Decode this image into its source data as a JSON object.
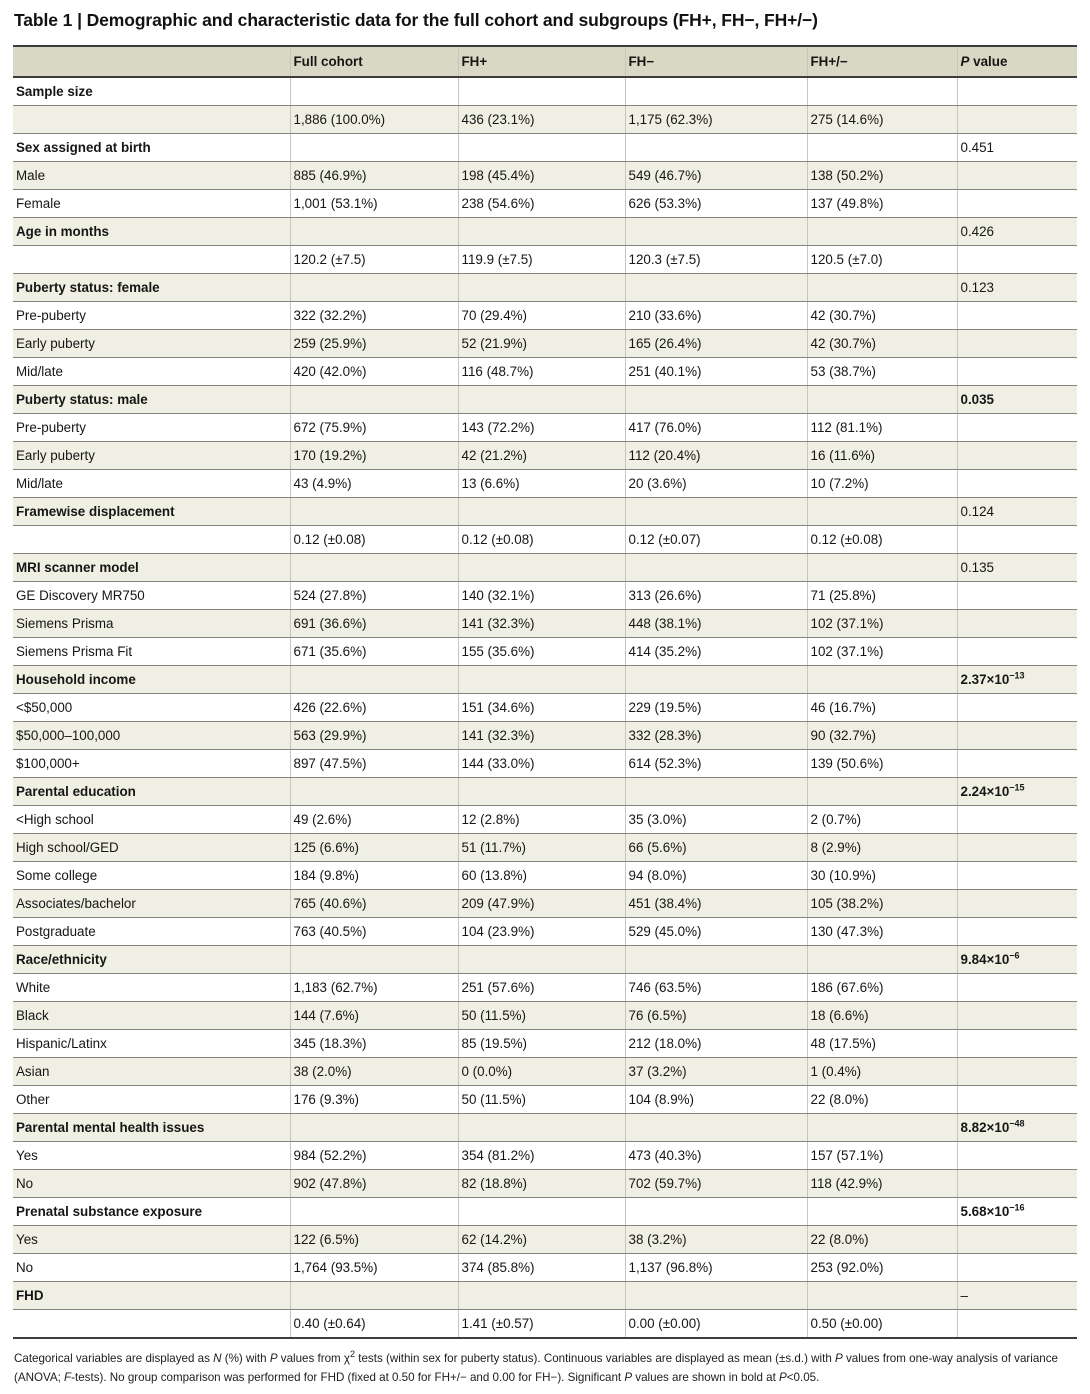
{
  "title": "Table 1 | Demographic and characteristic data for the full cohort and subgroups (FH+, FH−, FH+/−)",
  "colors": {
    "header_bg": "#d9d8c4",
    "shaded_row_bg": "#f0efe4",
    "thick_rule": "#3e3e38",
    "row_rule": "#84847c",
    "column_rule": "#c6c6bb",
    "text": "#161615"
  },
  "table": {
    "columns": [
      {
        "key": "row-label",
        "label": ""
      },
      {
        "key": "full-cohort",
        "label": "Full cohort"
      },
      {
        "key": "fh-pos",
        "label": "FH+"
      },
      {
        "key": "fh-neg",
        "label": "FH−"
      },
      {
        "key": "fh-pos-neg",
        "label": "FH+/−"
      },
      {
        "key": "p-value",
        "label": "P value",
        "italic_prefix": "P",
        "rest": " value"
      }
    ],
    "rows": [
      {
        "label": "Sample size",
        "section": true
      },
      {
        "label": "",
        "cells": [
          "1,886 (100.0%)",
          "436 (23.1%)",
          "1,175 (62.3%)",
          "275 (14.6%)"
        ]
      },
      {
        "label": "Sex assigned at birth",
        "section": true,
        "p": {
          "base": "0.451"
        }
      },
      {
        "label": "Male",
        "cells": [
          "885 (46.9%)",
          "198 (45.4%)",
          "549 (46.7%)",
          "138 (50.2%)"
        ]
      },
      {
        "label": "Female",
        "cells": [
          "1,001 (53.1%)",
          "238 (54.6%)",
          "626 (53.3%)",
          "137 (49.8%)"
        ]
      },
      {
        "label": "Age in months",
        "section": true,
        "p": {
          "base": "0.426"
        }
      },
      {
        "label": "",
        "cells": [
          "120.2 (±7.5)",
          "119.9 (±7.5)",
          "120.3 (±7.5)",
          "120.5 (±7.0)"
        ]
      },
      {
        "label": "Puberty status: female",
        "section": true,
        "p": {
          "base": "0.123"
        }
      },
      {
        "label": "Pre-puberty",
        "cells": [
          "322 (32.2%)",
          "70 (29.4%)",
          "210 (33.6%)",
          "42 (30.7%)"
        ]
      },
      {
        "label": "Early puberty",
        "cells": [
          "259 (25.9%)",
          "52 (21.9%)",
          "165 (26.4%)",
          "42 (30.7%)"
        ]
      },
      {
        "label": "Mid/late",
        "cells": [
          "420 (42.0%)",
          "116 (48.7%)",
          "251 (40.1%)",
          "53 (38.7%)"
        ]
      },
      {
        "label": "Puberty status: male",
        "section": true,
        "p": {
          "base": "0.035",
          "bold": true
        }
      },
      {
        "label": "Pre-puberty",
        "cells": [
          "672 (75.9%)",
          "143 (72.2%)",
          "417 (76.0%)",
          "112 (81.1%)"
        ]
      },
      {
        "label": "Early puberty",
        "cells": [
          "170 (19.2%)",
          "42 (21.2%)",
          "112 (20.4%)",
          "16 (11.6%)"
        ]
      },
      {
        "label": "Mid/late",
        "cells": [
          "43 (4.9%)",
          "13 (6.6%)",
          "20 (3.6%)",
          "10 (7.2%)"
        ]
      },
      {
        "label": "Framewise displacement",
        "section": true,
        "p": {
          "base": "0.124"
        }
      },
      {
        "label": "",
        "cells": [
          "0.12 (±0.08)",
          "0.12 (±0.08)",
          "0.12 (±0.07)",
          "0.12 (±0.08)"
        ]
      },
      {
        "label": "MRI scanner model",
        "section": true,
        "p": {
          "base": "0.135"
        }
      },
      {
        "label": "GE Discovery MR750",
        "cells": [
          "524 (27.8%)",
          "140 (32.1%)",
          "313 (26.6%)",
          "71 (25.8%)"
        ]
      },
      {
        "label": "Siemens Prisma",
        "cells": [
          "691 (36.6%)",
          "141 (32.3%)",
          "448 (38.1%)",
          "102 (37.1%)"
        ]
      },
      {
        "label": "Siemens Prisma Fit",
        "cells": [
          "671 (35.6%)",
          "155 (35.6%)",
          "414 (35.2%)",
          "102 (37.1%)"
        ]
      },
      {
        "label": "Household income",
        "section": true,
        "p": {
          "base": "2.37×10",
          "sup": "−13",
          "bold": true
        }
      },
      {
        "label": "<$50,000",
        "cells": [
          "426 (22.6%)",
          "151 (34.6%)",
          "229 (19.5%)",
          "46 (16.7%)"
        ]
      },
      {
        "label": "$50,000–100,000",
        "cells": [
          "563 (29.9%)",
          "141 (32.3%)",
          "332 (28.3%)",
          "90 (32.7%)"
        ]
      },
      {
        "label": "$100,000+",
        "cells": [
          "897 (47.5%)",
          "144 (33.0%)",
          "614 (52.3%)",
          "139 (50.6%)"
        ]
      },
      {
        "label": "Parental education",
        "section": true,
        "p": {
          "base": "2.24×10",
          "sup": "−15",
          "bold": true
        }
      },
      {
        "label": "<High school",
        "cells": [
          "49 (2.6%)",
          "12 (2.8%)",
          "35 (3.0%)",
          "2 (0.7%)"
        ]
      },
      {
        "label": "High school/GED",
        "cells": [
          "125 (6.6%)",
          "51 (11.7%)",
          "66 (5.6%)",
          "8 (2.9%)"
        ]
      },
      {
        "label": "Some college",
        "cells": [
          "184 (9.8%)",
          "60 (13.8%)",
          "94 (8.0%)",
          "30 (10.9%)"
        ]
      },
      {
        "label": "Associates/bachelor",
        "cells": [
          "765 (40.6%)",
          "209 (47.9%)",
          "451 (38.4%)",
          "105 (38.2%)"
        ]
      },
      {
        "label": "Postgraduate",
        "cells": [
          "763 (40.5%)",
          "104 (23.9%)",
          "529 (45.0%)",
          "130 (47.3%)"
        ]
      },
      {
        "label": "Race/ethnicity",
        "section": true,
        "p": {
          "base": "9.84×10",
          "sup": "−6",
          "bold": true
        }
      },
      {
        "label": "White",
        "cells": [
          "1,183 (62.7%)",
          "251 (57.6%)",
          "746 (63.5%)",
          "186 (67.6%)"
        ]
      },
      {
        "label": "Black",
        "cells": [
          "144 (7.6%)",
          "50 (11.5%)",
          "76 (6.5%)",
          "18 (6.6%)"
        ]
      },
      {
        "label": "Hispanic/Latinx",
        "cells": [
          "345 (18.3%)",
          "85 (19.5%)",
          "212 (18.0%)",
          "48 (17.5%)"
        ]
      },
      {
        "label": "Asian",
        "cells": [
          "38 (2.0%)",
          "0 (0.0%)",
          "37 (3.2%)",
          "1 (0.4%)"
        ]
      },
      {
        "label": "Other",
        "cells": [
          "176 (9.3%)",
          "50 (11.5%)",
          "104 (8.9%)",
          "22 (8.0%)"
        ]
      },
      {
        "label": "Parental mental health issues",
        "section": true,
        "p": {
          "base": "8.82×10",
          "sup": "−48",
          "bold": true
        }
      },
      {
        "label": "Yes",
        "cells": [
          "984 (52.2%)",
          "354 (81.2%)",
          "473 (40.3%)",
          "157 (57.1%)"
        ]
      },
      {
        "label": "No",
        "cells": [
          "902 (47.8%)",
          "82 (18.8%)",
          "702 (59.7%)",
          "118 (42.9%)"
        ]
      },
      {
        "label": "Prenatal substance exposure",
        "section": true,
        "p": {
          "base": "5.68×10",
          "sup": "−16",
          "bold": true
        }
      },
      {
        "label": "Yes",
        "cells": [
          "122 (6.5%)",
          "62 (14.2%)",
          "38 (3.2%)",
          "22 (8.0%)"
        ]
      },
      {
        "label": "No",
        "cells": [
          "1,764 (93.5%)",
          "374 (85.8%)",
          "1,137 (96.8%)",
          "253 (92.0%)"
        ]
      },
      {
        "label": "FHD",
        "section": true,
        "p": {
          "base": "–"
        }
      },
      {
        "label": "",
        "cells": [
          "0.40 (±0.64)",
          "1.41 (±0.57)",
          "0.00 (±0.00)",
          "0.50 (±0.00)"
        ]
      }
    ]
  },
  "footnote_segments": [
    {
      "t": "Categorical variables are displayed as "
    },
    {
      "t": "N",
      "i": true
    },
    {
      "t": " (%) with "
    },
    {
      "t": "P",
      "i": true
    },
    {
      "t": " values from χ"
    },
    {
      "t": "2",
      "sup": true
    },
    {
      "t": " tests (within sex for puberty status). Continuous variables are displayed as mean (±s.d.) with "
    },
    {
      "t": "P",
      "i": true
    },
    {
      "t": " values from one-way analysis of variance (ANOVA; "
    },
    {
      "t": "F",
      "i": true
    },
    {
      "t": "-tests). No group comparison was performed for FHD (fixed at 0.50 for FH+/− and 0.00 for FH−). Significant "
    },
    {
      "t": "P",
      "i": true
    },
    {
      "t": " values are shown in bold at "
    },
    {
      "t": "P",
      "i": true
    },
    {
      "t": "<0.05."
    }
  ]
}
